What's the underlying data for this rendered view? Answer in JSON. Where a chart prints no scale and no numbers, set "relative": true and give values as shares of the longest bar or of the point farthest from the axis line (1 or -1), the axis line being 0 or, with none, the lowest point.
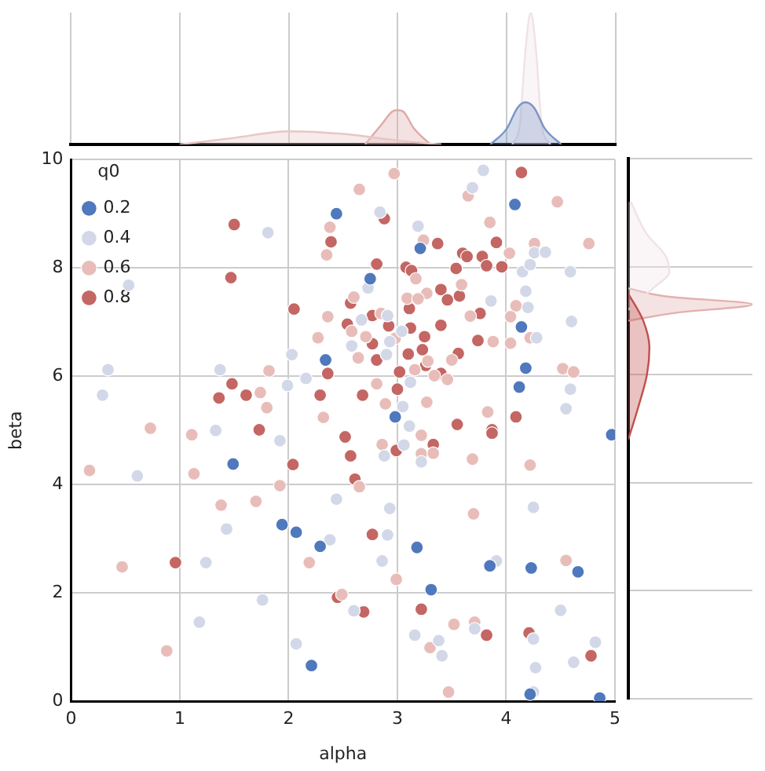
{
  "chart_data": [
    {
      "type": "area",
      "relative": true,
      "xlim": [
        0,
        5
      ],
      "xticks": [
        0,
        1,
        2,
        3,
        4,
        5
      ],
      "tick_labels": false,
      "grid": "x",
      "series": [
        {
          "color": "#e9c6c5",
          "x": [
            1,
            1.5,
            2,
            2.5,
            3,
            3.4
          ],
          "values": [
            0,
            0.05,
            0.1,
            0.08,
            0.03,
            0
          ]
        },
        {
          "color": "#dfaaa8",
          "x": [
            2.7,
            2.85,
            2.95,
            3.0,
            3.05,
            3.15,
            3.3
          ],
          "values": [
            0,
            0.15,
            0.25,
            0.26,
            0.25,
            0.12,
            0
          ]
        },
        {
          "color": "#7b94c6",
          "x": [
            3.85,
            4.0,
            4.1,
            4.17,
            4.25,
            4.35,
            4.5
          ],
          "values": [
            0,
            0.12,
            0.28,
            0.32,
            0.28,
            0.12,
            0
          ]
        },
        {
          "color": "#f0e2e7",
          "x": [
            4.05,
            4.12,
            4.17,
            4.22,
            4.27,
            4.32,
            4.4
          ],
          "values": [
            0,
            0.15,
            0.7,
            1,
            0.7,
            0.15,
            0
          ]
        }
      ]
    },
    {
      "type": "scatter",
      "xlabel": "alpha",
      "ylabel": "beta",
      "xlim": [
        0,
        5
      ],
      "ylim": [
        0,
        10
      ],
      "xticks": [
        0,
        1,
        2,
        3,
        4,
        5
      ],
      "yticks": [
        0,
        2,
        4,
        6,
        8,
        10
      ],
      "grid": true,
      "legend": "top left",
      "legend_title": "q0",
      "marker": "circle",
      "series": [
        {
          "name": "0.2",
          "color": "#4f78bd",
          "x": [
            2.44,
            2.34,
            4.08,
            3.21,
            2.75,
            4.14,
            4.18,
            4.12,
            2.98,
            1.49,
            1.94,
            2.07,
            2.29,
            2.21,
            4.97,
            3.18,
            3.85,
            4.23,
            4.66,
            3.31,
            4.22,
            4.86
          ],
          "values": [
            9.0,
            6.3,
            9.17,
            8.36,
            7.8,
            6.91,
            6.15,
            5.8,
            5.25,
            4.38,
            3.26,
            3.12,
            2.86,
            0.66,
            4.92,
            2.84,
            2.5,
            2.46,
            2.39,
            2.06,
            0.13,
            0.06
          ]
        },
        {
          "name": "0.4",
          "color": "#d3d8e8",
          "x": [
            1.81,
            0.53,
            2.03,
            0.34,
            1.37,
            0.29,
            1.99,
            2.16,
            3.79,
            3.69,
            2.84,
            3.19,
            4.26,
            4.36,
            4.15,
            4.22,
            4.59,
            2.73,
            3.86,
            4.18,
            4.2,
            2.91,
            2.67,
            4.6,
            3.04,
            2.58,
            2.93,
            4.28,
            2.9,
            4.59,
            3.12,
            3.05,
            4.55,
            3.11,
            0.61,
            1.92,
            1.33,
            2.44,
            1.43,
            2.38,
            1.24,
            1.76,
            1.18,
            2.07,
            2.88,
            3.22,
            3.06,
            2.93,
            4.25,
            2.91,
            2.86,
            3.91,
            2.6,
            3.71,
            3.16,
            3.38,
            4.25,
            4.5,
            3.41,
            4.62,
            4.82,
            4.27,
            4.25
          ],
          "values": [
            8.65,
            7.68,
            6.4,
            6.12,
            6.12,
            5.65,
            5.83,
            5.96,
            9.8,
            9.48,
            9.03,
            8.77,
            8.28,
            8.29,
            7.93,
            8.06,
            7.93,
            7.63,
            7.39,
            7.57,
            7.27,
            7.12,
            7.04,
            7.01,
            6.83,
            6.56,
            6.64,
            6.71,
            6.4,
            5.76,
            5.89,
            5.44,
            5.4,
            5.08,
            4.16,
            4.81,
            5.0,
            3.73,
            3.18,
            2.98,
            2.56,
            1.87,
            1.46,
            1.06,
            4.53,
            4.42,
            4.73,
            3.56,
            3.58,
            3.07,
            2.59,
            2.59,
            1.67,
            1.34,
            1.22,
            1.12,
            1.15,
            1.68,
            0.84,
            0.72,
            1.09,
            0.62,
            0.17
          ]
        },
        {
          "name": "0.6",
          "color": "#e8bdb9",
          "x": [
            2.38,
            2.35,
            2.36,
            2.27,
            1.82,
            1.74,
            1.8,
            0.73,
            2.32,
            2.97,
            2.65,
            3.65,
            4.47,
            3.85,
            3.24,
            4.26,
            4.76,
            4.03,
            3.17,
            3.59,
            3.27,
            3.09,
            3.19,
            2.6,
            4.09,
            3.67,
            4.04,
            2.85,
            2.58,
            2.71,
            2.98,
            3.88,
            4.04,
            4.22,
            2.64,
            3.28,
            3.5,
            4.52,
            4.62,
            3.16,
            3.34,
            3.46,
            2.81,
            2.89,
            3.27,
            3.83,
            0.17,
            1.13,
            1.92,
            1.11,
            1.38,
            1.7,
            0.47,
            2.19,
            0.88,
            2.86,
            3.22,
            3.22,
            3.33,
            3.69,
            4.22,
            2.65,
            3.7,
            4.55,
            2.99,
            2.49,
            3.52,
            3.71,
            3.3,
            3.47
          ],
          "values": [
            8.75,
            8.24,
            7.1,
            6.71,
            6.1,
            5.7,
            5.42,
            5.04,
            5.24,
            9.74,
            9.45,
            9.33,
            9.22,
            8.84,
            8.51,
            8.45,
            8.45,
            8.27,
            7.8,
            7.69,
            7.53,
            7.44,
            7.43,
            7.46,
            7.3,
            7.11,
            7.1,
            7.16,
            6.83,
            6.73,
            6.7,
            6.64,
            6.61,
            6.71,
            6.34,
            6.28,
            6.3,
            6.14,
            6.08,
            6.12,
            6.01,
            5.94,
            5.86,
            5.49,
            5.52,
            5.34,
            4.26,
            4.2,
            3.98,
            4.92,
            3.62,
            3.69,
            2.48,
            2.56,
            0.93,
            4.74,
            4.91,
            4.57,
            4.58,
            4.47,
            4.36,
            3.96,
            3.46,
            2.6,
            2.25,
            1.97,
            1.42,
            1.46,
            0.99,
            0.17
          ]
        },
        {
          "name": "0.8",
          "color": "#c46663",
          "x": [
            1.5,
            2.39,
            1.47,
            2.05,
            2.36,
            1.48,
            1.36,
            1.61,
            2.29,
            4.14,
            2.88,
            3.37,
            3.91,
            3.6,
            3.64,
            3.78,
            3.82,
            3.96,
            3.54,
            2.81,
            3.08,
            3.13,
            3.4,
            3.57,
            3.46,
            2.57,
            3.11,
            3.76,
            2.77,
            2.54,
            2.92,
            3.12,
            3.4,
            3.25,
            2.77,
            3.74,
            3.1,
            3.23,
            3.56,
            2.81,
            3.02,
            3.26,
            3.4,
            3.0,
            2.68,
            4.09,
            3.55,
            3.87,
            1.73,
            2.04,
            0.96,
            2.45,
            2.52,
            3.33,
            2.57,
            2.99,
            3.87,
            2.61,
            2.77,
            2.69,
            3.22,
            3.82,
            4.21,
            4.78
          ],
          "values": [
            8.8,
            8.48,
            7.82,
            7.24,
            6.05,
            5.86,
            5.6,
            5.65,
            5.65,
            9.76,
            8.91,
            8.45,
            8.47,
            8.27,
            8.21,
            8.21,
            8.04,
            8.02,
            7.99,
            8.07,
            8.01,
            7.95,
            7.6,
            7.48,
            7.41,
            7.35,
            7.25,
            7.16,
            7.12,
            6.96,
            6.93,
            6.89,
            6.94,
            6.73,
            6.6,
            6.66,
            6.41,
            6.49,
            6.42,
            6.3,
            6.08,
            6.2,
            6.05,
            5.76,
            5.65,
            5.25,
            5.11,
            5.01,
            5.01,
            4.37,
            2.56,
            1.92,
            4.88,
            4.74,
            4.53,
            4.63,
            4.95,
            4.1,
            3.08,
            1.65,
            1.7,
            1.22,
            1.26,
            0.84
          ]
        }
      ]
    },
    {
      "type": "area",
      "relative": true,
      "orientation": "horizontal",
      "ylim": [
        0,
        10
      ],
      "yticks": [
        0,
        2,
        4,
        6,
        8,
        10
      ],
      "tick_labels": false,
      "grid": "y",
      "series": [
        {
          "color": "#c0504d",
          "x": [
            4.8,
            5.4,
            6.0,
            6.5,
            7.0,
            7.5
          ],
          "values": [
            0,
            0.08,
            0.15,
            0.17,
            0.12,
            0
          ]
        },
        {
          "color": "#f0e2e7",
          "x": [
            7.2,
            7.6,
            7.9,
            8.2,
            8.6,
            9.2
          ],
          "values": [
            0,
            0.2,
            0.33,
            0.3,
            0.15,
            0.02
          ]
        },
        {
          "color": "#e3b0ae",
          "x": [
            7.0,
            7.15,
            7.3,
            7.45,
            7.6
          ],
          "values": [
            0,
            0.4,
            1,
            0.3,
            0
          ]
        }
      ]
    }
  ]
}
